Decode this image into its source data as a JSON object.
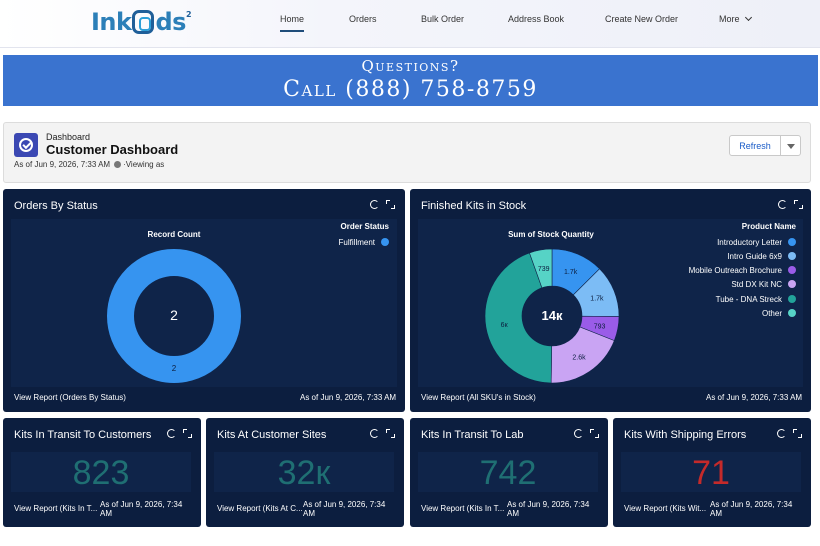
{
  "nav": {
    "logo": {
      "text_a": "Ink",
      "text_b": "ds",
      "sup": "2"
    },
    "items": [
      {
        "label": "Home"
      },
      {
        "label": "Orders"
      },
      {
        "label": "Bulk Order"
      },
      {
        "label": "Address Book"
      },
      {
        "label": "Create New Order"
      },
      {
        "label": "More"
      }
    ]
  },
  "banner": {
    "line1": "Questions?",
    "line2": "Call (888) 758-8759",
    "color": "#3a73cf"
  },
  "dashboard": {
    "subtitle": "Dashboard",
    "title": "Customer Dashboard",
    "as_of": "As of Jun 9, 2026, 7:33 AM",
    "viewing": "·Viewing as",
    "refresh_label": "Refresh"
  },
  "cards": {
    "orders_by_status": {
      "title": "Orders By Status",
      "chart_title": "Record Count",
      "legend_title": "Order Status",
      "center_label": "2",
      "footer_link": "View Report (Orders By Status)",
      "as_of": "As of Jun 9, 2026, 7:33 AM"
    },
    "finished_kits": {
      "title": "Finished Kits in Stock",
      "chart_title": "Sum of Stock Quantity",
      "legend_title": "Product Name",
      "center_label": "14к",
      "footer_link": "View Report (All SKU's in Stock)",
      "as_of": "As of Jun 9, 2026, 7:33 AM"
    },
    "transit_customers": {
      "title": "Kits In Transit To Customers",
      "value": "823",
      "footer_link": "View Report (Kits In T...",
      "as_of": "As of Jun 9, 2026, 7:34 AM",
      "color": "#1f6f73"
    },
    "customer_sites": {
      "title": "Kits At Customer Sites",
      "value": "32к",
      "footer_link": "View Report (Kits At C...",
      "as_of": "As of Jun 9, 2026, 7:34 AM",
      "color": "#1f6f73"
    },
    "transit_lab": {
      "title": "Kits In Transit To Lab",
      "value": "742",
      "footer_link": "View Report (Kits In T...",
      "as_of": "As of Jun 9, 2026, 7:34 AM",
      "color": "#1f6f73"
    },
    "shipping_errors": {
      "title": "Kits With Shipping Errors",
      "value": "71",
      "footer_link": "View Report (Kits Wit...",
      "as_of": "As of Jun 9, 2026, 7:34 AM",
      "color": "#c42a2a"
    }
  },
  "chart_data": [
    {
      "type": "pie",
      "title": "Record Count",
      "legend_title": "Order Status",
      "series": [
        {
          "name": "Fulfillment",
          "value": 2,
          "label": "2",
          "color": "#3694f0"
        }
      ],
      "center": "2"
    },
    {
      "type": "pie",
      "title": "Sum of Stock Quantity",
      "legend_title": "Product Name",
      "series": [
        {
          "name": "Introductory Letter",
          "value": 1700,
          "label": "1.7k",
          "color": "#3694f0"
        },
        {
          "name": "Intro Guide 6x9",
          "value": 1700,
          "label": "1.7k",
          "color": "#7cbcf5"
        },
        {
          "name": "Mobile Outreach Brochure",
          "value": 793,
          "label": "793",
          "color": "#9a5ce8"
        },
        {
          "name": "Std DX Kit NC",
          "value": 2600,
          "label": "2.6k",
          "color": "#c9a4f3"
        },
        {
          "name": "Tube - DNA Streck",
          "value": 6000,
          "label": "6к",
          "color": "#22a39a"
        },
        {
          "name": "Other",
          "value": 739,
          "label": "739",
          "color": "#56d3c6"
        }
      ],
      "center": "14к"
    }
  ]
}
